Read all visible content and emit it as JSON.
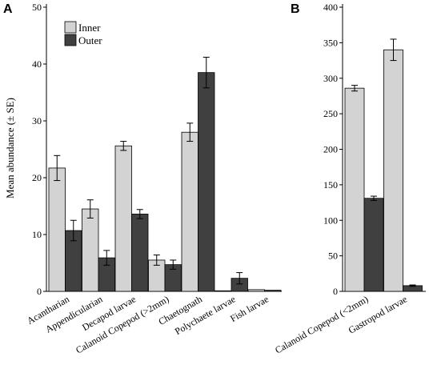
{
  "chart_data": [
    {
      "panel_label": "A",
      "type": "bar",
      "ylabel": "Mean abundance (± SE)",
      "ylim": [
        0,
        50
      ],
      "yticks": [
        0,
        10,
        20,
        30,
        40,
        50
      ],
      "grid": false,
      "legend_position": "top-left",
      "categories": [
        "Acantharian",
        "Appendicularian",
        "Decapod larvae",
        "Calanoid Copepod (>2mm)",
        "Chaetognath",
        "Polychaete larvae",
        "Fish larvae"
      ],
      "series": [
        {
          "name": "Inner",
          "color": "#d3d3d3",
          "values": [
            21.7,
            14.5,
            25.6,
            5.5,
            28.0,
            0.1,
            0.3
          ],
          "errors": [
            2.2,
            1.6,
            0.8,
            0.9,
            1.6,
            0.0,
            0.0
          ]
        },
        {
          "name": "Outer",
          "color": "#404040",
          "values": [
            10.7,
            5.9,
            13.6,
            4.7,
            38.5,
            2.3,
            0.2
          ],
          "errors": [
            1.8,
            1.3,
            0.8,
            0.8,
            2.7,
            1.0,
            0.0
          ]
        }
      ]
    },
    {
      "panel_label": "B",
      "type": "bar",
      "ylim": [
        0,
        400
      ],
      "yticks": [
        0,
        50,
        100,
        150,
        200,
        250,
        300,
        350,
        400
      ],
      "grid": false,
      "categories": [
        "Calanoid Copepod (<2mm)",
        "Gastropod larvae"
      ],
      "series": [
        {
          "name": "Inner",
          "color": "#d3d3d3",
          "values": [
            286,
            340
          ],
          "errors": [
            4,
            15
          ]
        },
        {
          "name": "Outer",
          "color": "#404040",
          "values": [
            131,
            8
          ],
          "errors": [
            3,
            1
          ]
        }
      ]
    }
  ]
}
